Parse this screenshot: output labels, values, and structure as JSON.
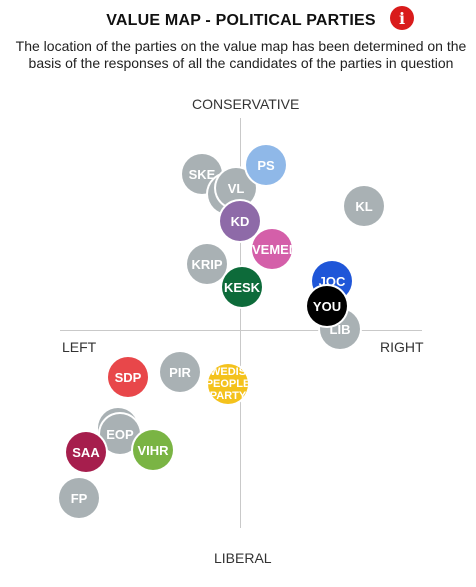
{
  "header": {
    "title": "VALUE MAP - POLITICAL PARTIES",
    "info_icon": "i",
    "subtitle": "The location of the parties on the value map has been determined on the basis of the responses of all the candidates of the parties in question"
  },
  "axes": {
    "top": "CONSERVATIVE",
    "bottom": "LIBERAL",
    "left": "LEFT",
    "right": "RIGHT"
  },
  "parties": [
    {
      "id": "ske",
      "label": "SKE",
      "color": "#a9b1b4"
    },
    {
      "id": "vl-back",
      "label": "",
      "color": "#a9b1b4"
    },
    {
      "id": "vl",
      "label": "VL",
      "color": "#a9b1b4"
    },
    {
      "id": "ps",
      "label": "PS",
      "color": "#8fb8e8"
    },
    {
      "id": "kl",
      "label": "KL",
      "color": "#a9b1b4"
    },
    {
      "id": "kd",
      "label": "KD",
      "color": "#8e6aa8"
    },
    {
      "id": "movement",
      "label": "OVEMENT",
      "color": "#d45fa9"
    },
    {
      "id": "krip",
      "label": "KRIP",
      "color": "#a9b1b4"
    },
    {
      "id": "kesk",
      "label": "KESK",
      "color": "#0d6b3a"
    },
    {
      "id": "joc",
      "label": "JOC",
      "color": "#1f56d8"
    },
    {
      "id": "lib",
      "label": "LIB",
      "color": "#a9b1b4"
    },
    {
      "id": "you",
      "label": "YOU",
      "color": "#000000"
    },
    {
      "id": "sdp",
      "label": "SDP",
      "color": "#e8474a"
    },
    {
      "id": "pir",
      "label": "PIR",
      "color": "#a9b1b4"
    },
    {
      "id": "swedish",
      "label": "WEDIS PEOPLE PARTY",
      "line1": "WEDIS",
      "line2": "PEOPLE",
      "line3": "PARTY",
      "color": "#f4c21c"
    },
    {
      "id": "eop-back",
      "label": "",
      "color": "#a9b1b4"
    },
    {
      "id": "eop",
      "label": "EOP",
      "color": "#a9b1b4"
    },
    {
      "id": "vihr",
      "label": "VIHR",
      "color": "#7ab444"
    },
    {
      "id": "saa",
      "label": "SAA",
      "color": "#a61e4d"
    },
    {
      "id": "fp",
      "label": "FP",
      "color": "#a9b1b4"
    }
  ]
}
